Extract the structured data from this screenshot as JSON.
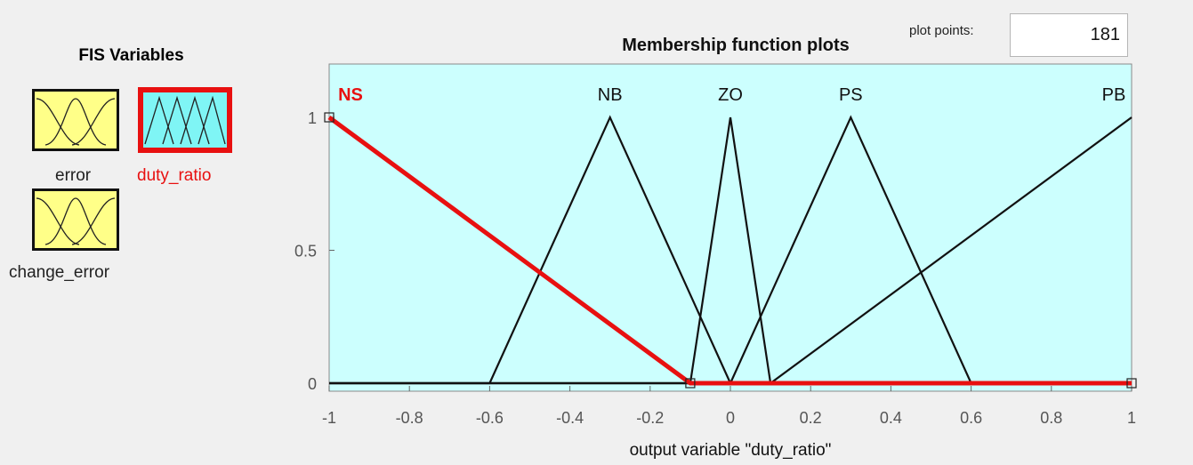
{
  "fis_panel": {
    "title": "FIS Variables",
    "variables": [
      {
        "name": "error",
        "selected": false
      },
      {
        "name": "duty_ratio",
        "selected": true
      },
      {
        "name": "change_error",
        "selected": false
      }
    ]
  },
  "plot": {
    "title": "Membership function plots",
    "plot_points_label": "plot points:",
    "plot_points_value": "181",
    "xlabel": "output variable \"duty_ratio\""
  },
  "colors": {
    "background": "#f0f0f0",
    "plot_bg": "#ccfffe",
    "input_icon_bg": "#ffff88",
    "output_icon_bg": "#7ff5f5",
    "selected": "#e81010",
    "line": "#111111"
  },
  "chart_data": {
    "type": "line",
    "xlim": [
      -1,
      1
    ],
    "ylim": [
      0,
      1.2
    ],
    "xticks": [
      "-1",
      "-0.8",
      "-0.6",
      "-0.4",
      "-0.2",
      "0",
      "0.2",
      "0.4",
      "0.6",
      "0.8",
      "1"
    ],
    "yticks": [
      "0",
      "0.5",
      "1"
    ],
    "grid": false,
    "series": [
      {
        "name": "NS",
        "x": [
          -1,
          -0.1,
          1
        ],
        "y": [
          1,
          0,
          0
        ],
        "selected": true
      },
      {
        "name": "NB",
        "x": [
          -0.6,
          -0.3,
          0
        ],
        "y": [
          0,
          1,
          0
        ],
        "selected": false
      },
      {
        "name": "ZO",
        "x": [
          -0.1,
          0,
          0.1
        ],
        "y": [
          0,
          1,
          0
        ],
        "selected": false
      },
      {
        "name": "PS",
        "x": [
          0,
          0.3,
          0.6
        ],
        "y": [
          0,
          1,
          0
        ],
        "selected": false
      },
      {
        "name": "PB",
        "x": [
          0.1,
          1
        ],
        "y": [
          0,
          1
        ],
        "selected": false
      }
    ]
  }
}
